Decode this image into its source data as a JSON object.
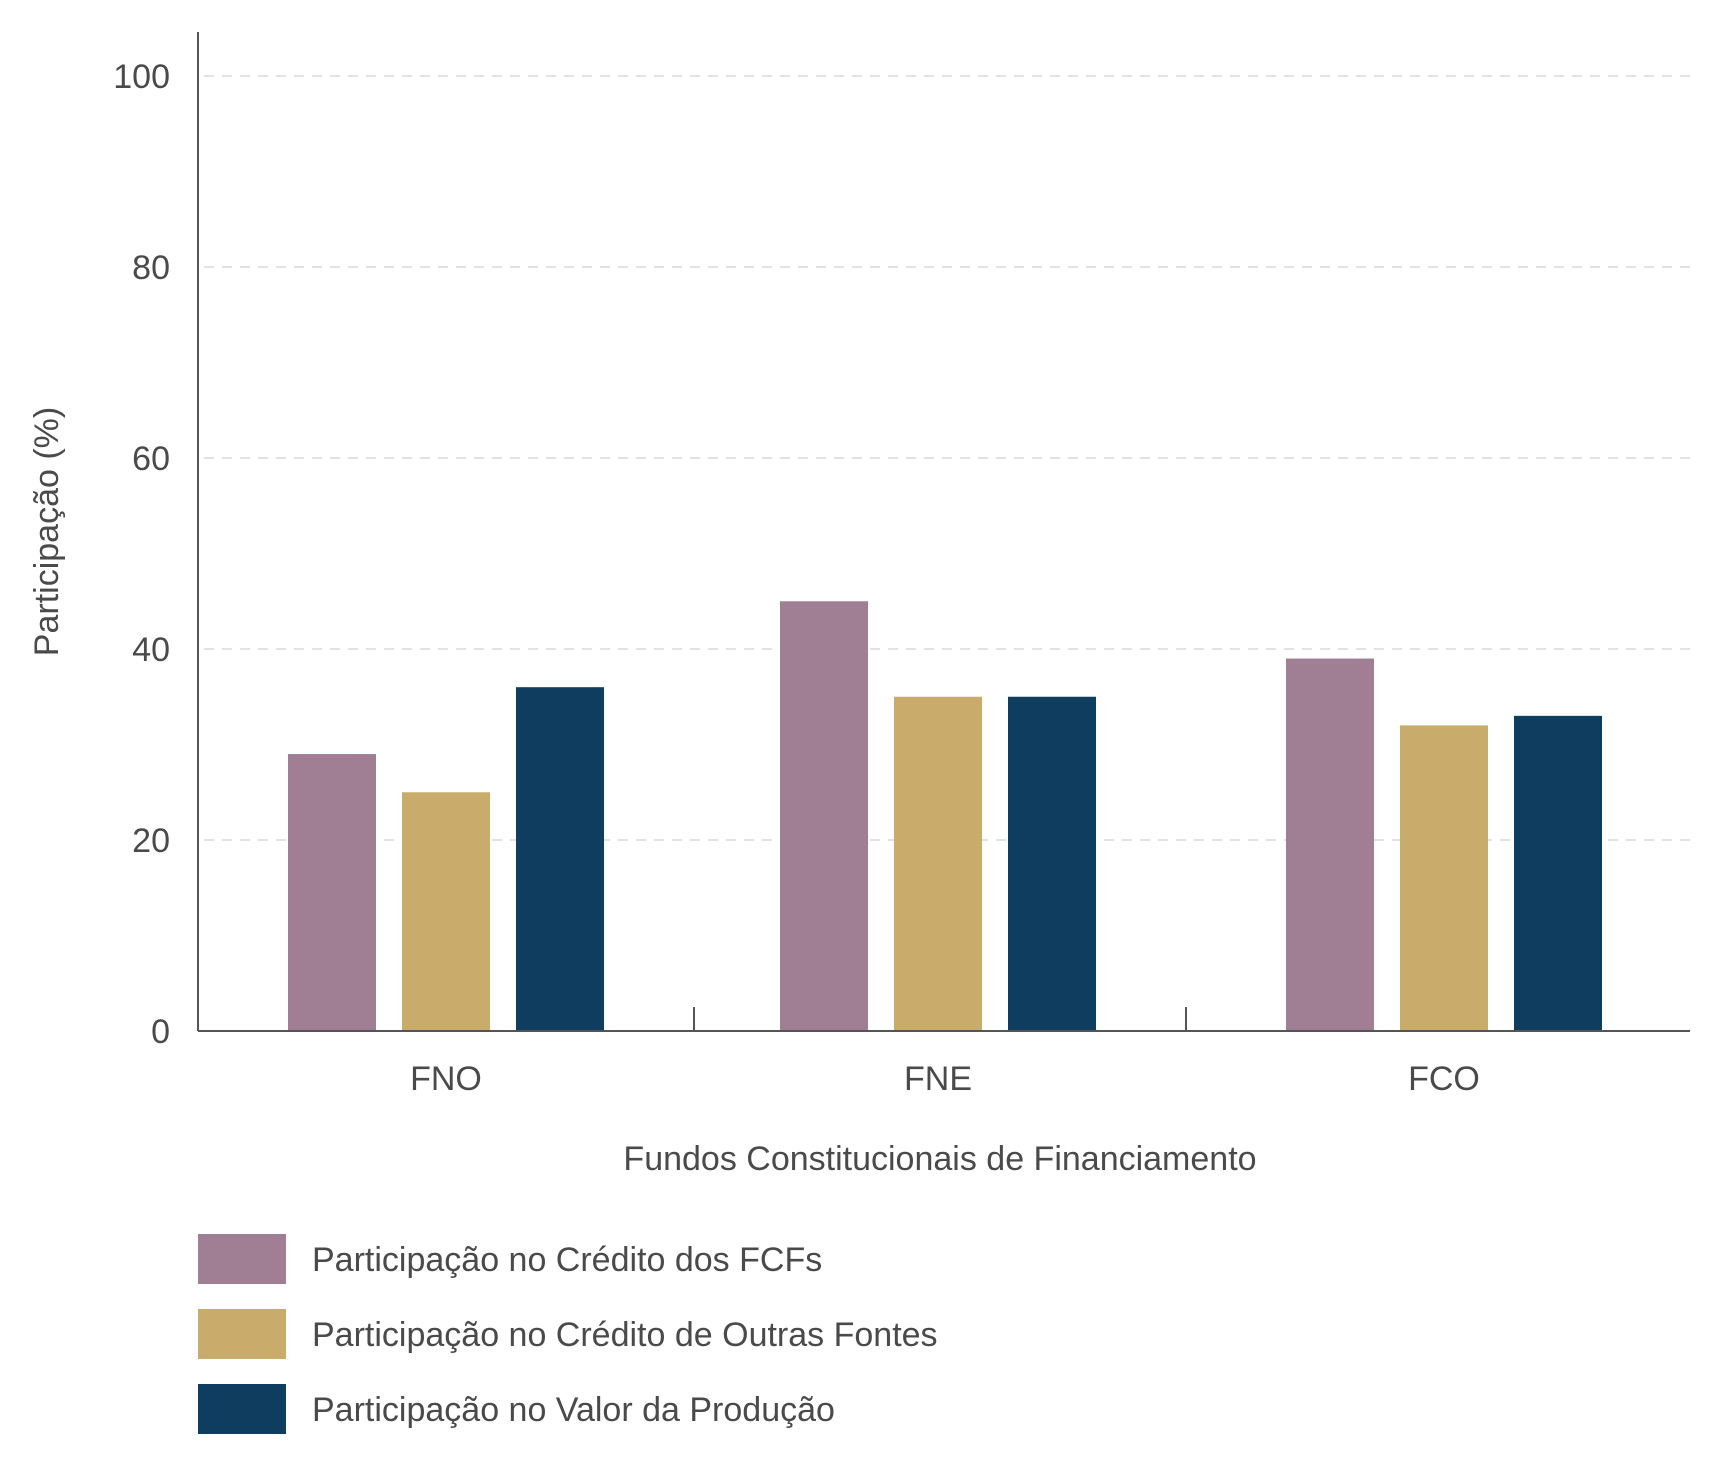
{
  "chart_data": {
    "type": "bar",
    "categories": [
      "FNO",
      "FNE",
      "FCO"
    ],
    "series": [
      {
        "name": "Participação no Crédito dos FCFs",
        "color": "#a07e93",
        "values": [
          29,
          45,
          39
        ]
      },
      {
        "name": "Participação no Crédito de Outras Fontes",
        "color": "#c9ab6c",
        "values": [
          25,
          35,
          32
        ]
      },
      {
        "name": "Participação no Valor da Produção",
        "color": "#0f3d60",
        "values": [
          36,
          35,
          33
        ]
      }
    ],
    "xlabel": "Fundos Constitucionais de Financiamento",
    "ylabel": "Participação (%)",
    "ylim": [
      0,
      100
    ],
    "yticks": [
      0,
      20,
      40,
      60,
      80,
      100
    ],
    "grid": true,
    "legend_position": "bottom-left"
  }
}
